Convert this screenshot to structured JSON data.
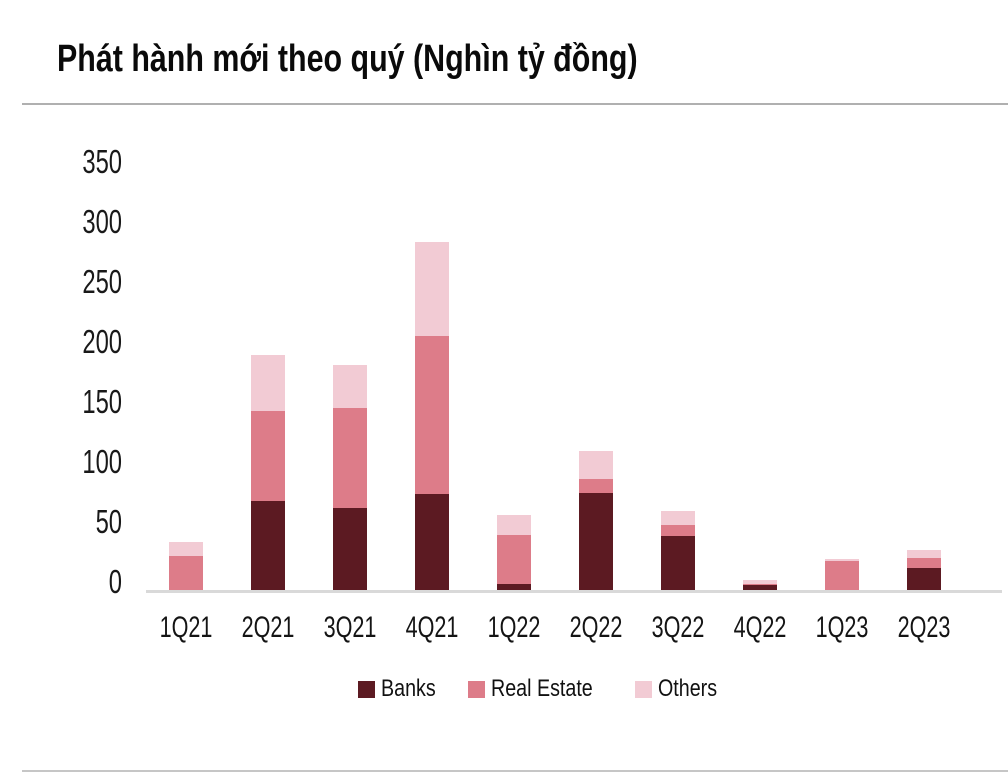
{
  "page": {
    "title": "Phát hành mới theo quý (Nghìn tỷ đồng)"
  },
  "chart_data": {
    "type": "bar",
    "stacked": true,
    "title": "Phát hành mới theo quý (Nghìn tỷ đồng)",
    "unit": "Nghìn tỷ đồng",
    "categories": [
      "1Q21",
      "2Q21",
      "3Q21",
      "4Q21",
      "1Q22",
      "2Q22",
      "3Q22",
      "4Q22",
      "1Q23",
      "2Q23"
    ],
    "series": [
      {
        "name": "Banks",
        "color": "#5C1A22",
        "values": [
          0,
          74,
          68,
          80,
          5,
          81,
          45,
          4,
          0,
          18
        ]
      },
      {
        "name": "Real Estate",
        "color": "#DD7C89",
        "values": [
          28,
          75,
          83,
          132,
          41,
          12,
          9,
          1,
          24,
          8
        ]
      },
      {
        "name": "Others",
        "color": "#F2CBD4",
        "values": [
          12,
          47,
          36,
          78,
          17,
          23,
          12,
          3,
          2,
          7
        ]
      }
    ],
    "totals": [
      40,
      196,
      187,
      290,
      63,
      116,
      66,
      8,
      26,
      33
    ],
    "ylim": [
      0,
      350
    ],
    "yticks": [
      0,
      50,
      100,
      150,
      200,
      250,
      300,
      350
    ],
    "xlabel": "",
    "ylabel": "",
    "grid": false,
    "legend_position": "bottom",
    "axis_line_color": "#d9d9d9",
    "text_color": "#141414"
  }
}
